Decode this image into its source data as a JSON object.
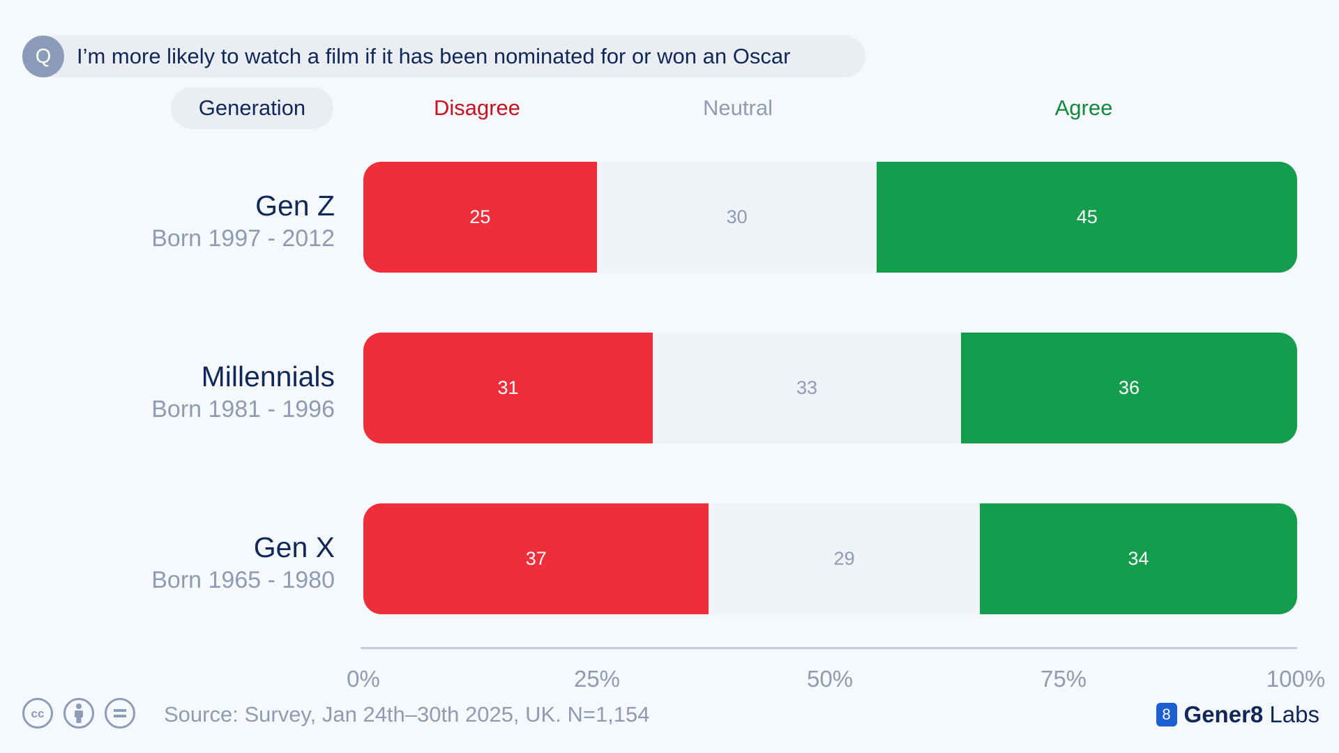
{
  "question": {
    "badge": "Q",
    "text": "I’m more likely to watch a film if it has been nominated for or won an Oscar"
  },
  "header": {
    "group_label": "Generation",
    "legend": [
      {
        "name": "Disagree",
        "color": "#c8101e"
      },
      {
        "name": "Neutral",
        "color": "#8d9bb3"
      },
      {
        "name": "Agree",
        "color": "#13893e"
      }
    ]
  },
  "colors": {
    "disagree": "#ee2e3a",
    "neutral": "#eff2f6",
    "agree": "#159d4e"
  },
  "chart_data": {
    "type": "bar",
    "orientation": "horizontal",
    "stacked": true,
    "categories": [
      "Gen Z",
      "Millennials",
      "Gen X"
    ],
    "category_subtitles": [
      "Born 1997 - 2012",
      "Born 1981 - 1996",
      "Born 1965 - 1980"
    ],
    "series": [
      {
        "name": "Disagree",
        "values": [
          25,
          31,
          37
        ]
      },
      {
        "name": "Neutral",
        "values": [
          30,
          33,
          29
        ]
      },
      {
        "name": "Agree",
        "values": [
          45,
          36,
          34
        ]
      }
    ],
    "xlim": [
      0,
      100
    ],
    "xticks": [
      "0%",
      "25%",
      "50%",
      "75%",
      "100%"
    ],
    "grid": false,
    "legend_position": "top"
  },
  "footer": {
    "license_icons": [
      "cc-icon",
      "by-icon",
      "nd-icon"
    ],
    "source": "Source: Survey, Jan 24th–30th 2025, UK. N=1,154",
    "brand_logo": "8",
    "brand_bold": "Gener8",
    "brand_rest": " Labs"
  }
}
